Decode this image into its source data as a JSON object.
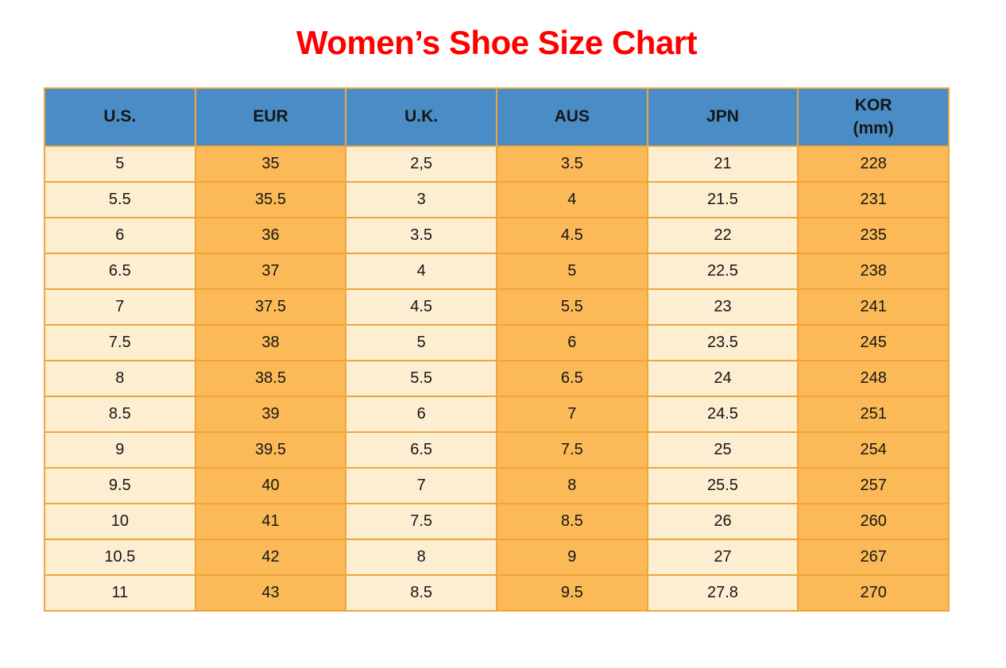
{
  "page": {
    "title": "Women’s Shoe Size Chart"
  },
  "colors": {
    "title_red": "#fe0000",
    "header_blue": "#4a8dc6",
    "cell_cream": "#fdeed2",
    "cell_orange": "#fbba57",
    "border_gold": "#eda53c",
    "text_black": "#161616"
  },
  "chart_data": {
    "type": "table",
    "title": "Women’s Shoe Size Chart",
    "columns": [
      {
        "label": "U.S.",
        "sub": ""
      },
      {
        "label": "EUR",
        "sub": ""
      },
      {
        "label": "U.K.",
        "sub": ""
      },
      {
        "label": "AUS",
        "sub": ""
      },
      {
        "label": "JPN",
        "sub": ""
      },
      {
        "label": "KOR",
        "sub": "(mm)"
      }
    ],
    "rows": [
      [
        "5",
        "35",
        "2,5",
        "3.5",
        "21",
        "228"
      ],
      [
        "5.5",
        "35.5",
        "3",
        "4",
        "21.5",
        "231"
      ],
      [
        "6",
        "36",
        "3.5",
        "4.5",
        "22",
        "235"
      ],
      [
        "6.5",
        "37",
        "4",
        "5",
        "22.5",
        "238"
      ],
      [
        "7",
        "37.5",
        "4.5",
        "5.5",
        "23",
        "241"
      ],
      [
        "7.5",
        "38",
        "5",
        "6",
        "23.5",
        "245"
      ],
      [
        "8",
        "38.5",
        "5.5",
        "6.5",
        "24",
        "248"
      ],
      [
        "8.5",
        "39",
        "6",
        "7",
        "24.5",
        "251"
      ],
      [
        "9",
        "39.5",
        "6.5",
        "7.5",
        "25",
        "254"
      ],
      [
        "9.5",
        "40",
        "7",
        "8",
        "25.5",
        "257"
      ],
      [
        "10",
        "41",
        "7.5",
        "8.5",
        "26",
        "260"
      ],
      [
        "10.5",
        "42",
        "8",
        "9",
        "27",
        "267"
      ],
      [
        "11",
        "43",
        "8.5",
        "9.5",
        "27.8",
        "270"
      ]
    ]
  }
}
